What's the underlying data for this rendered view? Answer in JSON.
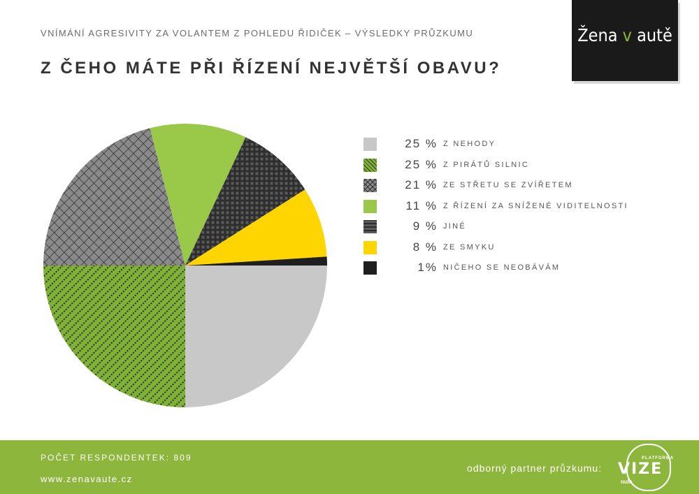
{
  "header": {
    "subtitle": "VNÍMÁNÍ AGRESIVITY ZA VOLANTEM Z POHLEDU ŘIDIČEK – VÝSLEDKY PRŮZKUMU",
    "title": "Z ČEHO MÁTE PŘI ŘÍZENÍ NEJVĚTŠÍ OBAVU?"
  },
  "brand": {
    "part1": "Žena ",
    "part2": "v",
    "part3": " autě"
  },
  "chart_data": {
    "type": "pie",
    "title": "Z ČEHO MÁTE PŘI ŘÍZENÍ NEJVĚTŠÍ OBAVU?",
    "start": "3 o'clock, clockwise",
    "legend_position": "right",
    "slices": [
      {
        "label": "Z NEHODY",
        "pct_label": "25 %",
        "value": 25,
        "color": "#c8c8c8",
        "pattern": "solid"
      },
      {
        "label": "Z PIRÁTŮ SILNIC",
        "pct_label": "25 %",
        "value": 25,
        "color": "#7fb138",
        "pattern": "diagonal-dots"
      },
      {
        "label": "ZE STŘETU SE ZVÍŘETEM",
        "pct_label": "21 %",
        "value": 21,
        "color": "#8a8a8a",
        "pattern": "crosshatch"
      },
      {
        "label": "Z ŘÍZENÍ ZA SNÍŽENÉ VIDITELNOSTI",
        "pct_label": "11 %",
        "value": 11,
        "color": "#9ac94a",
        "pattern": "solid"
      },
      {
        "label": "JINÉ",
        "pct_label": "9 %",
        "value": 9,
        "color": "#3a3a3a",
        "pattern": "grid"
      },
      {
        "label": "ZE SMYKU",
        "pct_label": "8 %",
        "value": 8,
        "color": "#ffd500",
        "pattern": "solid"
      },
      {
        "label": "NIČEHO SE NEOBÁVÁM",
        "pct_label": "1%",
        "value": 1,
        "color": "#1f1f1f",
        "pattern": "solid"
      }
    ]
  },
  "footer": {
    "respondents": "POČET RESPONDENTEK: 809",
    "website": "www.zenavaute.cz",
    "partner": "odborný partner průzkumu:",
    "logo_small": "PLATFORMA",
    "logo_main": "VIZE",
    "logo_sub": "nula"
  },
  "colors": {
    "accent_green": "#8db63c",
    "brand_black": "#1a1a1a"
  }
}
